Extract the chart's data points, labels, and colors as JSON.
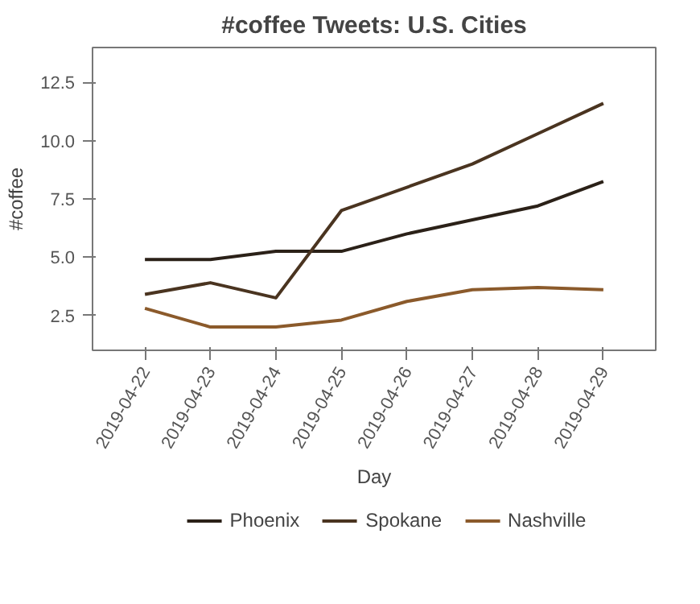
{
  "chart_data": {
    "type": "line",
    "title": "#coffee Tweets: U.S. Cities",
    "xlabel": "Day",
    "ylabel": "#coffee",
    "categories": [
      "2019-04-22",
      "2019-04-23",
      "2019-04-24",
      "2019-04-25",
      "2019-04-26",
      "2019-04-27",
      "2019-04-28",
      "2019-04-29"
    ],
    "series": [
      {
        "name": "Phoenix",
        "color": "#2b2118",
        "values": [
          4.9,
          4.9,
          5.25,
          5.25,
          6.0,
          6.6,
          7.2,
          8.25
        ]
      },
      {
        "name": "Spokane",
        "color": "#4a3420",
        "values": [
          3.4,
          3.9,
          3.25,
          7.0,
          8.0,
          9.0,
          10.3,
          11.6
        ]
      },
      {
        "name": "Nashville",
        "color": "#8b5a2b",
        "values": [
          2.8,
          2.0,
          2.0,
          2.3,
          3.1,
          3.6,
          3.7,
          3.6
        ]
      }
    ],
    "ylim": [
      1,
      14
    ],
    "yticks": [
      2.5,
      {
        "value": 5,
        "label": "5.0"
      },
      7.5,
      {
        "value": 10,
        "label": "10.0"
      },
      12.5
    ],
    "grid": false,
    "legend": "bottom",
    "marker": "none",
    "line_style": "solid"
  }
}
